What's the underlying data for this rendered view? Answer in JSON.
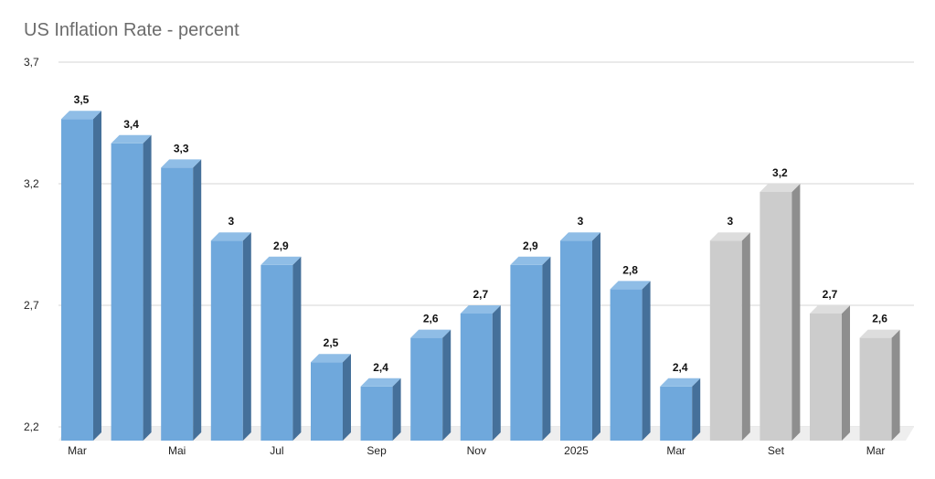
{
  "chart_data": {
    "type": "bar",
    "title": "US Inflation Rate - percent",
    "categories": [
      "Mar",
      "",
      "Mai",
      "",
      "Jul",
      "",
      "Sep",
      "",
      "Nov",
      "",
      "2025",
      "",
      "Mar",
      "",
      "Set",
      "",
      "Mar"
    ],
    "values": [
      3.5,
      3.4,
      3.3,
      3.0,
      2.9,
      2.5,
      2.4,
      2.6,
      2.7,
      2.9,
      3.0,
      2.8,
      2.4,
      3.0,
      3.2,
      2.7,
      2.6
    ],
    "value_labels": [
      "3,5",
      "3,4",
      "3,3",
      "3",
      "2,9",
      "2,5",
      "2,4",
      "2,6",
      "2,7",
      "2,9",
      "3",
      "2,8",
      "2,4",
      "3",
      "3,2",
      "2,7",
      "2,6"
    ],
    "bar_groups": [
      "actual",
      "actual",
      "actual",
      "actual",
      "actual",
      "actual",
      "actual",
      "actual",
      "actual",
      "actual",
      "actual",
      "actual",
      "actual",
      "forecast",
      "forecast",
      "forecast",
      "forecast"
    ],
    "ylim": [
      2.2,
      3.7
    ],
    "yticks": [
      2.2,
      2.7,
      3.2,
      3.7
    ],
    "ytick_labels": [
      "2,2",
      "2,7",
      "3,2",
      "3,7"
    ],
    "xlabel": "",
    "ylabel": "",
    "grid": true,
    "colors": {
      "actual_front": "#6fa8dc",
      "actual_top": "#8fbde6",
      "actual_side": "#45709a",
      "forecast_front": "#cccccc",
      "forecast_top": "#dddddd",
      "forecast_side": "#8e8e8e",
      "grid": "#d4d4d4",
      "floor": "#eeeeee"
    }
  }
}
